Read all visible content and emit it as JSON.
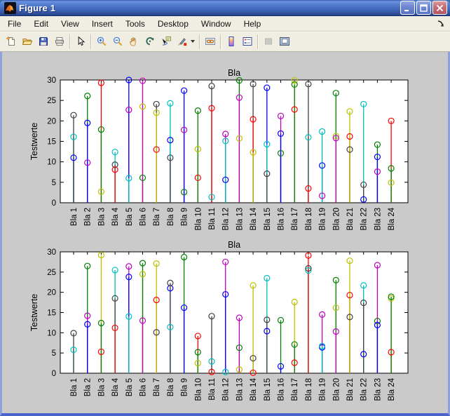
{
  "window": {
    "title": "Figure 1",
    "controls": [
      "minimize",
      "maximize",
      "close"
    ]
  },
  "menu": {
    "items": [
      "File",
      "Edit",
      "View",
      "Insert",
      "Tools",
      "Desktop",
      "Window",
      "Help"
    ]
  },
  "toolbar": {
    "buttons": [
      {
        "name": "new-figure",
        "icon": "new-document"
      },
      {
        "name": "open-file",
        "icon": "open-folder"
      },
      {
        "name": "save-figure",
        "icon": "save"
      },
      {
        "name": "print-figure",
        "icon": "print"
      },
      {
        "sep": true
      },
      {
        "name": "edit-plot",
        "icon": "cursor"
      },
      {
        "sep": true
      },
      {
        "name": "zoom-in",
        "icon": "zoom-in"
      },
      {
        "name": "zoom-out",
        "icon": "zoom-out"
      },
      {
        "name": "pan",
        "icon": "hand"
      },
      {
        "name": "rotate-3d",
        "icon": "rotate"
      },
      {
        "name": "data-cursor",
        "icon": "datacursor"
      },
      {
        "name": "brush-data",
        "icon": "brush",
        "dropdown": true
      },
      {
        "sep": true
      },
      {
        "name": "link-plot",
        "icon": "link"
      },
      {
        "sep": true
      },
      {
        "name": "insert-colorbar",
        "icon": "colorbar"
      },
      {
        "name": "insert-legend",
        "icon": "legend"
      },
      {
        "sep": true
      },
      {
        "name": "hide-plot-tools",
        "icon": "hidetools",
        "disabled": true
      },
      {
        "name": "show-plot-tools",
        "icon": "showtools"
      }
    ]
  },
  "palette": {
    "b": "#0000FF",
    "g": "#007F00",
    "r": "#FF0000",
    "c": "#00BFBF",
    "m": "#BF00BF",
    "y": "#BFBF00",
    "k": "#404040"
  },
  "chart_data": [
    {
      "type": "stem",
      "title": "Bla",
      "ylabel": "Testwerte",
      "ylim": [
        0,
        30
      ],
      "yticks": [
        0,
        5,
        10,
        15,
        20,
        25,
        30
      ],
      "grid": false,
      "marker": "open-circle",
      "categories": [
        "Bla 1",
        "Bla 2",
        "Bla 3",
        "Bla 4",
        "Bla 5",
        "Bla 6",
        "Bla 7",
        "Bla 8",
        "Bla 9",
        "Bla 10",
        "Bla 11",
        "Bla 12",
        "Bla 13",
        "Bla 14",
        "Bla 15",
        "Bla 16",
        "Bla 17",
        "Bla 18",
        "Bla 19",
        "Bla 20",
        "Bla 21",
        "Bla 22",
        "Bla 23",
        "Bla 24"
      ],
      "stems": [
        [
          [
            11.0,
            "b"
          ],
          [
            16.1,
            "c"
          ],
          [
            21.4,
            "k"
          ]
        ],
        [
          [
            26.1,
            "g"
          ],
          [
            9.8,
            "m"
          ],
          [
            19.5,
            "b"
          ]
        ],
        [
          [
            29.3,
            "r"
          ],
          [
            2.7,
            "y"
          ],
          [
            17.9,
            "g"
          ]
        ],
        [
          [
            12.4,
            "c"
          ],
          [
            9.3,
            "k"
          ],
          [
            8.1,
            "r"
          ]
        ],
        [
          [
            22.7,
            "m"
          ],
          [
            30.0,
            "b"
          ],
          [
            6.0,
            "c"
          ]
        ],
        [
          [
            23.5,
            "y"
          ],
          [
            6.1,
            "g"
          ],
          [
            29.8,
            "m"
          ]
        ],
        [
          [
            24.1,
            "k"
          ],
          [
            13.0,
            "r"
          ],
          [
            22.0,
            "y"
          ]
        ],
        [
          [
            15.3,
            "b"
          ],
          [
            24.3,
            "c"
          ],
          [
            11.0,
            "k"
          ]
        ],
        [
          [
            2.6,
            "g"
          ],
          [
            17.8,
            "m"
          ],
          [
            27.4,
            "b"
          ]
        ],
        [
          [
            6.1,
            "r"
          ],
          [
            13.1,
            "y"
          ],
          [
            22.5,
            "g"
          ]
        ],
        [
          [
            1.4,
            "c"
          ],
          [
            28.5,
            "k"
          ],
          [
            23.1,
            "r"
          ]
        ],
        [
          [
            16.8,
            "m"
          ],
          [
            5.6,
            "b"
          ],
          [
            15.1,
            "c"
          ]
        ],
        [
          [
            15.7,
            "y"
          ],
          [
            29.9,
            "g"
          ],
          [
            25.7,
            "m"
          ]
        ],
        [
          [
            29.0,
            "k"
          ],
          [
            20.4,
            "r"
          ],
          [
            12.3,
            "y"
          ]
        ],
        [
          [
            28.1,
            "b"
          ],
          [
            14.3,
            "c"
          ],
          [
            7.1,
            "k"
          ]
        ],
        [
          [
            12.1,
            "g"
          ],
          [
            21.2,
            "m"
          ],
          [
            16.9,
            "b"
          ]
        ],
        [
          [
            22.8,
            "r"
          ],
          [
            29.9,
            "y"
          ],
          [
            28.9,
            "g"
          ]
        ],
        [
          [
            16.0,
            "c"
          ],
          [
            29.0,
            "k"
          ],
          [
            3.5,
            "r"
          ]
        ],
        [
          [
            1.7,
            "m"
          ],
          [
            9.1,
            "b"
          ],
          [
            17.4,
            "c"
          ]
        ],
        [
          [
            16.3,
            "y"
          ],
          [
            26.8,
            "g"
          ],
          [
            15.8,
            "m"
          ]
        ],
        [
          [
            13.0,
            "k"
          ],
          [
            16.2,
            "r"
          ],
          [
            22.3,
            "y"
          ]
        ],
        [
          [
            0.8,
            "b"
          ],
          [
            24.1,
            "c"
          ],
          [
            4.4,
            "k"
          ]
        ],
        [
          [
            14.2,
            "g"
          ],
          [
            7.6,
            "m"
          ],
          [
            11.2,
            "b"
          ]
        ],
        [
          [
            20.0,
            "r"
          ],
          [
            4.9,
            "y"
          ],
          [
            8.4,
            "g"
          ]
        ]
      ]
    },
    {
      "type": "stem",
      "title": "Bla",
      "ylabel": "Testwerte",
      "ylim": [
        0,
        30
      ],
      "yticks": [
        0,
        5,
        10,
        15,
        20,
        25,
        30
      ],
      "grid": false,
      "marker": "open-circle",
      "categories": [
        "Bla 1",
        "Bla 2",
        "Bla 3",
        "Bla 4",
        "Bla 5",
        "Bla 6",
        "Bla 7",
        "Bla 8",
        "Bla 9",
        "Bla 10",
        "Bla 11",
        "Bla 12",
        "Bla 13",
        "Bla 14",
        "Bla 15",
        "Bla 16",
        "Bla 17",
        "Bla 18",
        "Bla 19",
        "Bla 20",
        "Bla 21",
        "Bla 22",
        "Bla 23",
        "Bla 24"
      ],
      "stems": [
        [
          [
            5.8,
            "c"
          ],
          [
            9.9,
            "k"
          ]
        ],
        [
          [
            26.5,
            "g"
          ],
          [
            14.2,
            "m"
          ],
          [
            12.1,
            "b"
          ]
        ],
        [
          [
            5.3,
            "r"
          ],
          [
            29.2,
            "y"
          ],
          [
            12.4,
            "g"
          ]
        ],
        [
          [
            25.5,
            "c"
          ],
          [
            18.5,
            "k"
          ],
          [
            11.2,
            "r"
          ]
        ],
        [
          [
            26.4,
            "m"
          ],
          [
            23.8,
            "b"
          ],
          [
            14.0,
            "c"
          ]
        ],
        [
          [
            24.5,
            "y"
          ],
          [
            27.2,
            "g"
          ],
          [
            13.0,
            "m"
          ]
        ],
        [
          [
            10.1,
            "k"
          ],
          [
            18.1,
            "r"
          ],
          [
            27.1,
            "y"
          ]
        ],
        [
          [
            21.0,
            "b"
          ],
          [
            11.4,
            "c"
          ],
          [
            22.3,
            "k"
          ]
        ],
        [
          [
            28.7,
            "g"
          ],
          [
            16.2,
            "b"
          ]
        ],
        [
          [
            9.2,
            "r"
          ],
          [
            2.5,
            "y"
          ],
          [
            5.2,
            "g"
          ]
        ],
        [
          [
            2.9,
            "c"
          ],
          [
            14.1,
            "k"
          ],
          [
            0.3,
            "r"
          ]
        ],
        [
          [
            27.5,
            "m"
          ],
          [
            19.5,
            "b"
          ],
          [
            0.3,
            "c"
          ]
        ],
        [
          [
            0.9,
            "y"
          ],
          [
            6.3,
            "g"
          ],
          [
            13.7,
            "m"
          ]
        ],
        [
          [
            3.7,
            "k"
          ],
          [
            0.1,
            "r"
          ],
          [
            21.7,
            "y"
          ]
        ],
        [
          [
            10.4,
            "b"
          ],
          [
            23.5,
            "c"
          ],
          [
            13.2,
            "k"
          ]
        ],
        [
          [
            13.1,
            "g"
          ],
          [
            1.7,
            "b"
          ]
        ],
        [
          [
            2.6,
            "r"
          ],
          [
            17.6,
            "y"
          ],
          [
            7.1,
            "g"
          ]
        ],
        [
          [
            25.4,
            "c"
          ],
          [
            25.9,
            "k"
          ],
          [
            29.1,
            "r"
          ]
        ],
        [
          [
            14.5,
            "m"
          ],
          [
            6.4,
            "b"
          ],
          [
            6.7,
            "c"
          ]
        ],
        [
          [
            16.2,
            "y"
          ],
          [
            23.0,
            "g"
          ],
          [
            10.3,
            "m"
          ]
        ],
        [
          [
            13.9,
            "k"
          ],
          [
            19.3,
            "r"
          ],
          [
            27.8,
            "y"
          ]
        ],
        [
          [
            4.7,
            "b"
          ],
          [
            21.7,
            "c"
          ],
          [
            17.4,
            "k"
          ]
        ],
        [
          [
            12.9,
            "g"
          ],
          [
            26.7,
            "m"
          ],
          [
            11.9,
            "b"
          ]
        ],
        [
          [
            5.2,
            "r"
          ],
          [
            18.5,
            "y"
          ],
          [
            18.9,
            "g"
          ]
        ]
      ]
    }
  ]
}
